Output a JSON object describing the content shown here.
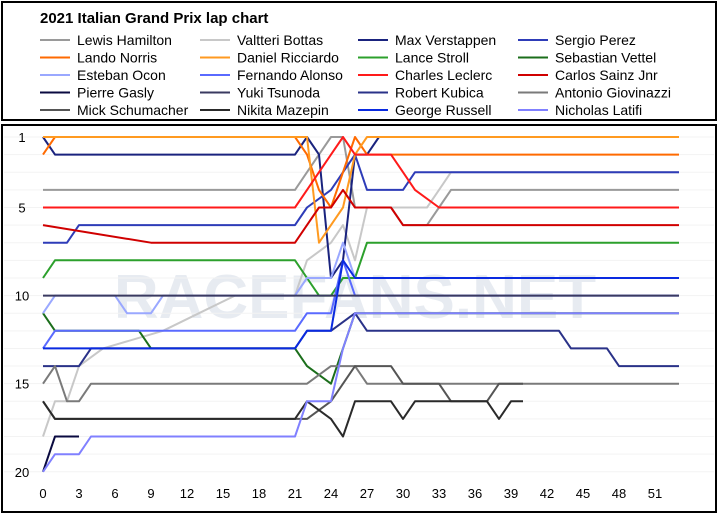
{
  "chart_data": {
    "type": "line",
    "title": "2021 Italian Grand Prix lap chart",
    "xlabel": "",
    "ylabel": "",
    "x_ticks": [
      0,
      3,
      6,
      9,
      12,
      15,
      18,
      21,
      24,
      27,
      30,
      33,
      36,
      39,
      42,
      45,
      48,
      51
    ],
    "y_ticks": [
      1,
      5,
      10,
      15,
      20
    ],
    "xlim": [
      0,
      53
    ],
    "ylim": [
      20,
      0.5
    ],
    "legend_position": "top",
    "watermark": "RACEFANS.NET",
    "series": [
      {
        "name": "Lewis Hamilton",
        "color": "#9a9a9a",
        "points": [
          [
            0,
            4
          ],
          [
            21,
            4
          ],
          [
            22,
            3
          ],
          [
            23,
            2
          ],
          [
            24,
            1
          ],
          [
            25,
            1
          ],
          [
            26,
            5
          ],
          [
            29,
            5
          ],
          [
            30,
            6
          ],
          [
            32,
            6
          ],
          [
            33,
            5
          ],
          [
            34,
            4
          ],
          [
            53,
            4
          ]
        ]
      },
      {
        "name": "Valtteri Bottas",
        "color": "#c8c8c8",
        "points": [
          [
            0,
            18
          ],
          [
            1,
            16
          ],
          [
            2,
            16
          ],
          [
            3,
            14
          ],
          [
            5,
            13
          ],
          [
            10,
            12
          ],
          [
            13,
            11
          ],
          [
            16,
            10
          ],
          [
            21,
            10
          ],
          [
            22,
            8
          ],
          [
            24,
            7
          ],
          [
            25,
            6
          ],
          [
            26,
            8
          ],
          [
            27,
            5
          ],
          [
            32,
            5
          ],
          [
            33,
            4
          ],
          [
            34,
            3
          ],
          [
            53,
            3
          ]
        ]
      },
      {
        "name": "Max Verstappen",
        "color": "#1a237e",
        "points": [
          [
            0,
            1
          ],
          [
            1,
            2
          ],
          [
            21,
            2
          ],
          [
            22,
            1
          ],
          [
            23,
            2
          ],
          [
            24,
            9
          ],
          [
            25,
            8
          ],
          [
            26,
            2
          ],
          [
            27,
            2
          ],
          [
            28,
            1
          ],
          [
            53,
            1
          ]
        ]
      },
      {
        "name": "Sergio Perez",
        "color": "#2e3cb8",
        "points": [
          [
            0,
            7
          ],
          [
            1,
            7
          ],
          [
            2,
            7
          ],
          [
            3,
            6
          ],
          [
            8,
            6
          ],
          [
            9,
            6
          ],
          [
            21,
            6
          ],
          [
            22,
            5
          ],
          [
            24,
            4
          ],
          [
            26,
            2
          ],
          [
            27,
            4
          ],
          [
            30,
            4
          ],
          [
            31,
            3
          ],
          [
            32,
            3
          ],
          [
            33,
            3
          ],
          [
            53,
            3
          ]
        ]
      },
      {
        "name": "Lando Norris",
        "color": "#ff6a00",
        "points": [
          [
            0,
            2
          ],
          [
            1,
            1
          ],
          [
            21,
            1
          ],
          [
            22,
            2
          ],
          [
            23,
            4
          ],
          [
            24,
            5
          ],
          [
            25,
            3
          ],
          [
            26,
            1
          ],
          [
            27,
            2
          ],
          [
            53,
            2
          ]
        ]
      },
      {
        "name": "Daniel Ricciardo",
        "color": "#ff9a20",
        "points": [
          [
            0,
            1
          ],
          [
            1,
            1
          ],
          [
            21,
            1
          ],
          [
            22,
            1
          ],
          [
            23,
            7
          ],
          [
            24,
            6
          ],
          [
            25,
            5
          ],
          [
            26,
            2
          ],
          [
            27,
            1
          ],
          [
            53,
            1
          ]
        ]
      },
      {
        "name": "Lance Stroll",
        "color": "#2ca02c",
        "points": [
          [
            0,
            9
          ],
          [
            1,
            8
          ],
          [
            21,
            8
          ],
          [
            22,
            9
          ],
          [
            23,
            10
          ],
          [
            24,
            10
          ],
          [
            25,
            9
          ],
          [
            26,
            9
          ],
          [
            27,
            7
          ],
          [
            53,
            7
          ]
        ]
      },
      {
        "name": "Sebastian Vettel",
        "color": "#1b6e1b",
        "points": [
          [
            0,
            11
          ],
          [
            1,
            12
          ],
          [
            8,
            12
          ],
          [
            9,
            13
          ],
          [
            21,
            13
          ],
          [
            22,
            14
          ],
          [
            24,
            15
          ],
          [
            26,
            11
          ],
          [
            27,
            11
          ],
          [
            53,
            11
          ]
        ]
      },
      {
        "name": "Esteban Ocon",
        "color": "#9aa8ff",
        "points": [
          [
            0,
            11
          ],
          [
            1,
            10
          ],
          [
            6,
            10
          ],
          [
            7,
            11
          ],
          [
            9,
            11
          ],
          [
            10,
            10
          ],
          [
            21,
            10
          ],
          [
            22,
            9
          ],
          [
            24,
            9
          ],
          [
            25,
            7
          ],
          [
            26,
            9
          ],
          [
            53,
            9
          ]
        ]
      },
      {
        "name": "Fernando Alonso",
        "color": "#5a6aff",
        "points": [
          [
            0,
            13
          ],
          [
            1,
            12
          ],
          [
            21,
            12
          ],
          [
            22,
            11
          ],
          [
            23,
            11
          ],
          [
            24,
            11
          ],
          [
            25,
            8
          ],
          [
            26,
            10
          ],
          [
            53,
            10
          ]
        ]
      },
      {
        "name": "Charles Leclerc",
        "color": "#ff1a1a",
        "points": [
          [
            0,
            5
          ],
          [
            21,
            5
          ],
          [
            22,
            4
          ],
          [
            23,
            3
          ],
          [
            24,
            2
          ],
          [
            25,
            1
          ],
          [
            26,
            2
          ],
          [
            29,
            2
          ],
          [
            30,
            3
          ],
          [
            31,
            4
          ],
          [
            33,
            5
          ],
          [
            53,
            5
          ]
        ]
      },
      {
        "name": "Carlos Sainz Jnr",
        "color": "#d00000",
        "points": [
          [
            0,
            6
          ],
          [
            9,
            7
          ],
          [
            21,
            7
          ],
          [
            22,
            6
          ],
          [
            23,
            5
          ],
          [
            24,
            5
          ],
          [
            25,
            4
          ],
          [
            26,
            5
          ],
          [
            29,
            5
          ],
          [
            30,
            6
          ],
          [
            53,
            6
          ]
        ]
      },
      {
        "name": "Pierre Gasly",
        "color": "#0a0a40",
        "points": [
          [
            0,
            20
          ],
          [
            1,
            18
          ],
          [
            3,
            18
          ]
        ]
      },
      {
        "name": "Yuki Tsunoda",
        "color": "#3a3a60",
        "points": [
          [
            0,
            10
          ],
          [
            1,
            10
          ],
          [
            53,
            10
          ]
        ]
      },
      {
        "name": "Robert Kubica",
        "color": "#2a3288",
        "points": [
          [
            0,
            14
          ],
          [
            1,
            14
          ],
          [
            3,
            14
          ],
          [
            4,
            13
          ],
          [
            21,
            13
          ],
          [
            22,
            12
          ],
          [
            24,
            12
          ],
          [
            26,
            11
          ],
          [
            27,
            12
          ],
          [
            43,
            12
          ],
          [
            44,
            13
          ],
          [
            47,
            13
          ],
          [
            48,
            14
          ],
          [
            53,
            14
          ]
        ]
      },
      {
        "name": "Antonio Giovinazzi",
        "color": "#7a7a7a",
        "points": [
          [
            0,
            15
          ],
          [
            1,
            14
          ],
          [
            2,
            16
          ],
          [
            3,
            16
          ],
          [
            4,
            15
          ],
          [
            21,
            15
          ],
          [
            22,
            15
          ],
          [
            24,
            14
          ],
          [
            26,
            14
          ],
          [
            27,
            15
          ],
          [
            53,
            15
          ]
        ]
      },
      {
        "name": "Mick Schumacher",
        "color": "#555555",
        "points": [
          [
            0,
            16
          ],
          [
            1,
            17
          ],
          [
            21,
            17
          ],
          [
            22,
            17
          ],
          [
            24,
            16
          ],
          [
            26,
            14
          ],
          [
            29,
            14
          ],
          [
            30,
            15
          ],
          [
            33,
            15
          ],
          [
            34,
            16
          ],
          [
            37,
            16
          ],
          [
            38,
            15
          ],
          [
            40,
            15
          ]
        ]
      },
      {
        "name": "Nikita Mazepin",
        "color": "#2a2a2a",
        "points": [
          [
            0,
            16
          ],
          [
            1,
            17
          ],
          [
            21,
            17
          ],
          [
            22,
            16
          ],
          [
            24,
            17
          ],
          [
            25,
            18
          ],
          [
            26,
            16
          ],
          [
            29,
            16
          ],
          [
            30,
            17
          ],
          [
            31,
            16
          ],
          [
            37,
            16
          ],
          [
            38,
            17
          ],
          [
            39,
            16
          ],
          [
            40,
            16
          ]
        ]
      },
      {
        "name": "George Russell",
        "color": "#0a2ae0",
        "points": [
          [
            0,
            13
          ],
          [
            1,
            13
          ],
          [
            21,
            13
          ],
          [
            22,
            12
          ],
          [
            23,
            12
          ],
          [
            24,
            12
          ],
          [
            25,
            8
          ],
          [
            26,
            9
          ],
          [
            53,
            9
          ]
        ]
      },
      {
        "name": "Nicholas Latifi",
        "color": "#8080ff",
        "points": [
          [
            0,
            20
          ],
          [
            1,
            19
          ],
          [
            3,
            19
          ],
          [
            4,
            18
          ],
          [
            21,
            18
          ],
          [
            22,
            16
          ],
          [
            24,
            16
          ],
          [
            25,
            13
          ],
          [
            26,
            11
          ],
          [
            53,
            11
          ]
        ]
      }
    ]
  }
}
